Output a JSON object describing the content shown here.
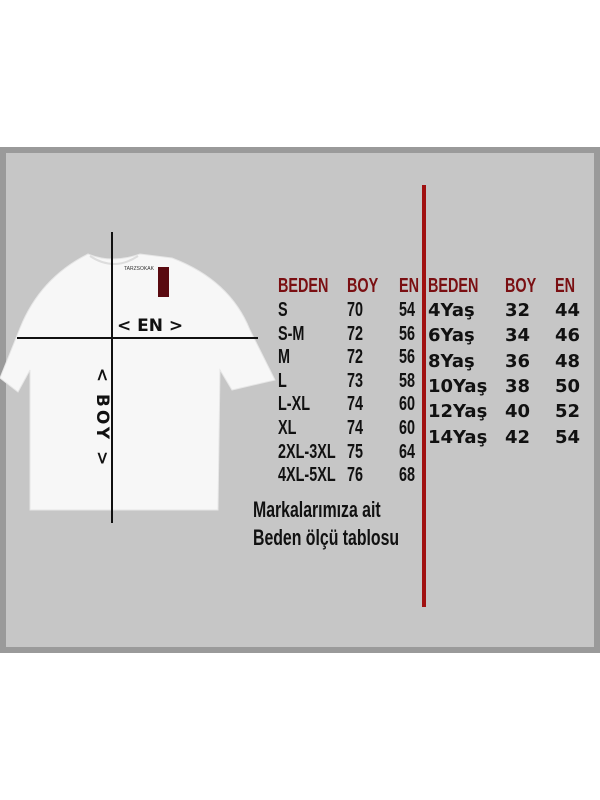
{
  "shirt": {
    "tag_brand": "TARZSOKAK",
    "width_label": "< EN >",
    "length_label": "< BOY >"
  },
  "adult_table": {
    "headers": [
      "BEDEN",
      "BOY",
      "EN"
    ],
    "rows": [
      [
        "S",
        "70",
        "54"
      ],
      [
        "S-M",
        "72",
        "56"
      ],
      [
        "M",
        "72",
        "56"
      ],
      [
        "L",
        "73",
        "58"
      ],
      [
        "L-XL",
        "74",
        "60"
      ],
      [
        "XL",
        "74",
        "60"
      ],
      [
        "2XL-3XL",
        "75",
        "64"
      ],
      [
        "4XL-5XL",
        "76",
        "68"
      ]
    ]
  },
  "kids_table": {
    "headers": [
      "BEDEN",
      "BOY",
      "EN"
    ],
    "rows": [
      [
        "4Yaş",
        "32",
        "44"
      ],
      [
        "6Yaş",
        "34",
        "46"
      ],
      [
        "8Yaş",
        "36",
        "48"
      ],
      [
        "10Yaş",
        "38",
        "50"
      ],
      [
        "12Yaş",
        "40",
        "52"
      ],
      [
        "14Yaş",
        "42",
        "54"
      ]
    ]
  },
  "footer": {
    "line1": "Markalarımıza ait",
    "line2": "Beden ölçü tablosu"
  },
  "colors": {
    "header": "#7a0f12",
    "divider": "#a01010",
    "background": "#c6c6c6"
  }
}
